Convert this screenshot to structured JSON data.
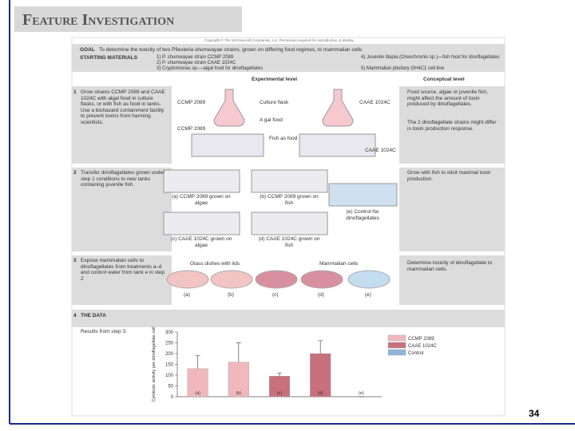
{
  "header": {
    "title": "Feature Investigation"
  },
  "copyright": "Copyright © The McGraw-Hill Companies, Inc. Permission required for reproduction or display.",
  "goal": {
    "label": "GOAL",
    "text": "To determine the toxicity of two Pfiesteria shumwayae strains, grown on differing food regimes, to mammalian cells"
  },
  "materials": {
    "label": "STARTING MATERIALS",
    "items": [
      "1) P. shumwayae strain CCMP 2089",
      "2) P. shumwayae strain CAAE 1024C",
      "3) Cryptomonas sp.—algal food for dinoflagellates",
      "4) Juvenile tilapia (Oreochromis sp.)—fish food for dinoflagellates",
      "5) Mammalian pituitary GH4C1 cell line"
    ]
  },
  "columns": [
    "Experimental level",
    "Conceptual level"
  ],
  "steps": [
    {
      "number": "1",
      "text": "Grow strains CCMP 2089 and CAAE 1024C with algal food in culture flasks, or with fish as food in tanks. Use a biohazard containment facility to prevent toxins from harming scientists.",
      "labels": [
        "CCMP 2089",
        "Culture flask",
        "CAAE 1024C",
        "A gal food",
        "CCMP 2089",
        "Fish as food",
        "CAAE 1024C"
      ],
      "concept": [
        "Food source, algae or juvenile fish, might affect the amount of toxin produced by dinoflagellates.",
        "The 2 dinoflagellate strains might differ in toxin production response."
      ]
    },
    {
      "number": "2",
      "text": "Transfer dinoflagellates grown under step 1 conditions to new tanks containing juvenile fish.",
      "labels": [
        "(a) CCMP 2089 grown on algae",
        "(b) CCMP 2089 grown on fish",
        "(e) Control No dinoflagellates",
        "(c) CAAE 1024C grown on algae",
        "(d) CAAE 1024C grown on fish"
      ],
      "concept": [
        "Grow with fish to elicit maximal toxin production."
      ]
    },
    {
      "number": "3",
      "text": "Expose mammalian cells to dinoflagellates from treatments a–d and control water from tank e in step 2",
      "labels": [
        "Glass dishes with lids",
        "Mammalian cells",
        "(a)",
        "(b)",
        "(c)",
        "(d)",
        "(e)"
      ],
      "concept": [
        "Determine toxicity of dinoflagellate to mammalian cells."
      ]
    },
    {
      "number": "4",
      "text": "THE DATA",
      "labels": [
        "Results from step 3:"
      ]
    }
  ],
  "chart_data": {
    "type": "bar",
    "y_label": "Cytotoxic activity per dinoflagellate cell",
    "categories": [
      "(a)",
      "(b)",
      "(c)",
      "(d)",
      "(e)"
    ],
    "values": [
      130,
      160,
      95,
      200,
      0
    ],
    "errors": [
      60,
      90,
      15,
      60,
      0
    ],
    "bar_colors": [
      "#f0b8bc",
      "#f0b8bc",
      "#c8707c",
      "#c8707c",
      "#8fb6d8"
    ],
    "legend": [
      {
        "name": "CCMP 2089",
        "color": "#f0b8bc"
      },
      {
        "name": "CAAE 1024C",
        "color": "#c8707c"
      },
      {
        "name": "Control",
        "color": "#8fb6d8"
      }
    ],
    "ylim": [
      0,
      300
    ],
    "yticks": [
      0,
      50,
      100,
      150,
      200,
      250,
      300
    ]
  },
  "page_number": "34"
}
